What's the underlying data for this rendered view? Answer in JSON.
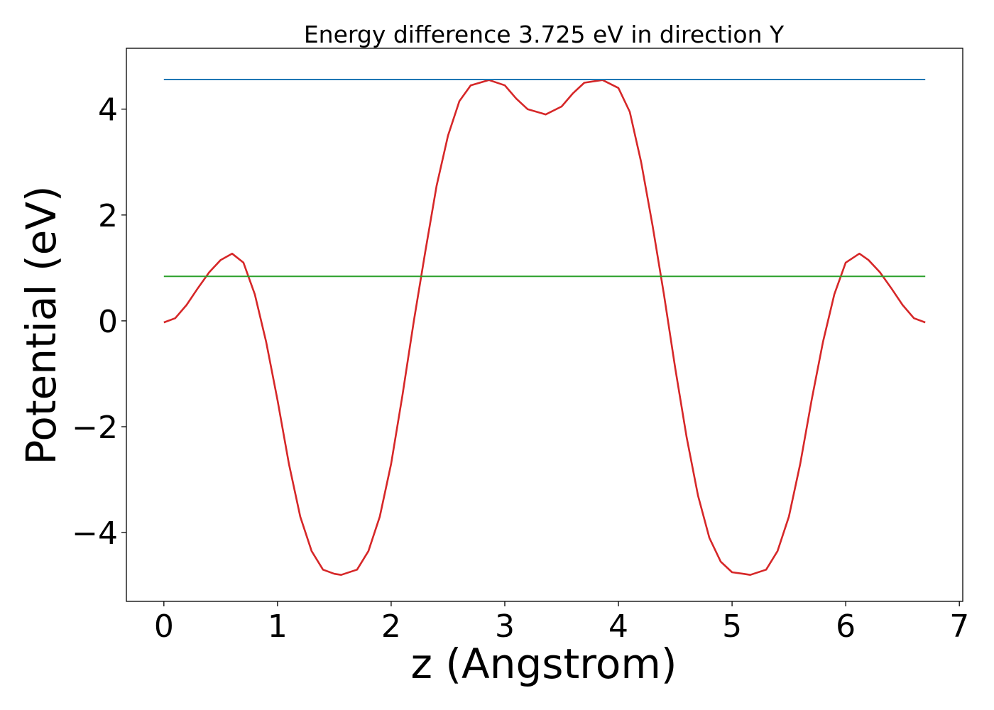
{
  "chart_data": {
    "type": "line",
    "title": "Energy difference 3.725 eV in direction Y",
    "xlabel": "z (Angstrom)",
    "ylabel": "Potential (eV)",
    "xlim": [
      -0.33,
      7.03
    ],
    "ylim": [
      -5.3,
      5.15
    ],
    "xticks": [
      0,
      1,
      2,
      3,
      4,
      5,
      6,
      7
    ],
    "yticks": [
      -4,
      -2,
      0,
      2,
      4
    ],
    "xtick_labels": [
      "0",
      "1",
      "2",
      "3",
      "4",
      "5",
      "6",
      "7"
    ],
    "ytick_labels": [
      "−4",
      "−2",
      "0",
      "2",
      "4"
    ],
    "grid": false,
    "series": [
      {
        "color": "#d62728",
        "x": [
          0.0,
          0.1,
          0.2,
          0.3,
          0.4,
          0.5,
          0.6,
          0.7,
          0.8,
          0.9,
          1.0,
          1.1,
          1.2,
          1.3,
          1.4,
          1.5,
          1.56,
          1.7,
          1.8,
          1.9,
          2.0,
          2.1,
          2.2,
          2.3,
          2.4,
          2.5,
          2.6,
          2.7,
          2.86,
          3.0,
          3.1,
          3.2,
          3.36,
          3.5,
          3.6,
          3.7,
          3.86,
          4.0,
          4.1,
          4.2,
          4.3,
          4.4,
          4.5,
          4.6,
          4.7,
          4.8,
          4.9,
          5.0,
          5.1,
          5.16,
          5.3,
          5.4,
          5.5,
          5.6,
          5.7,
          5.8,
          5.9,
          6.0,
          6.12,
          6.2,
          6.3,
          6.4,
          6.5,
          6.6,
          6.7
        ],
        "y": [
          -0.03,
          0.05,
          0.3,
          0.62,
          0.92,
          1.15,
          1.27,
          1.1,
          0.5,
          -0.4,
          -1.5,
          -2.7,
          -3.7,
          -4.35,
          -4.7,
          -4.78,
          -4.8,
          -4.7,
          -4.35,
          -3.7,
          -2.7,
          -1.4,
          0.0,
          1.3,
          2.55,
          3.5,
          4.15,
          4.45,
          4.55,
          4.45,
          4.2,
          4.0,
          3.9,
          4.05,
          4.3,
          4.5,
          4.55,
          4.4,
          3.95,
          3.0,
          1.8,
          0.5,
          -0.9,
          -2.2,
          -3.3,
          -4.1,
          -4.55,
          -4.75,
          -4.78,
          -4.8,
          -4.7,
          -4.35,
          -3.7,
          -2.7,
          -1.5,
          -0.4,
          0.5,
          1.1,
          1.27,
          1.15,
          0.92,
          0.62,
          0.3,
          0.05,
          -0.03
        ]
      },
      {
        "color": "#1f77b4",
        "x": [
          0.0,
          6.7
        ],
        "y": [
          4.56,
          4.56
        ]
      },
      {
        "color": "#2ca02c",
        "x": [
          0.0,
          6.7
        ],
        "y": [
          0.84,
          0.84
        ]
      }
    ]
  }
}
